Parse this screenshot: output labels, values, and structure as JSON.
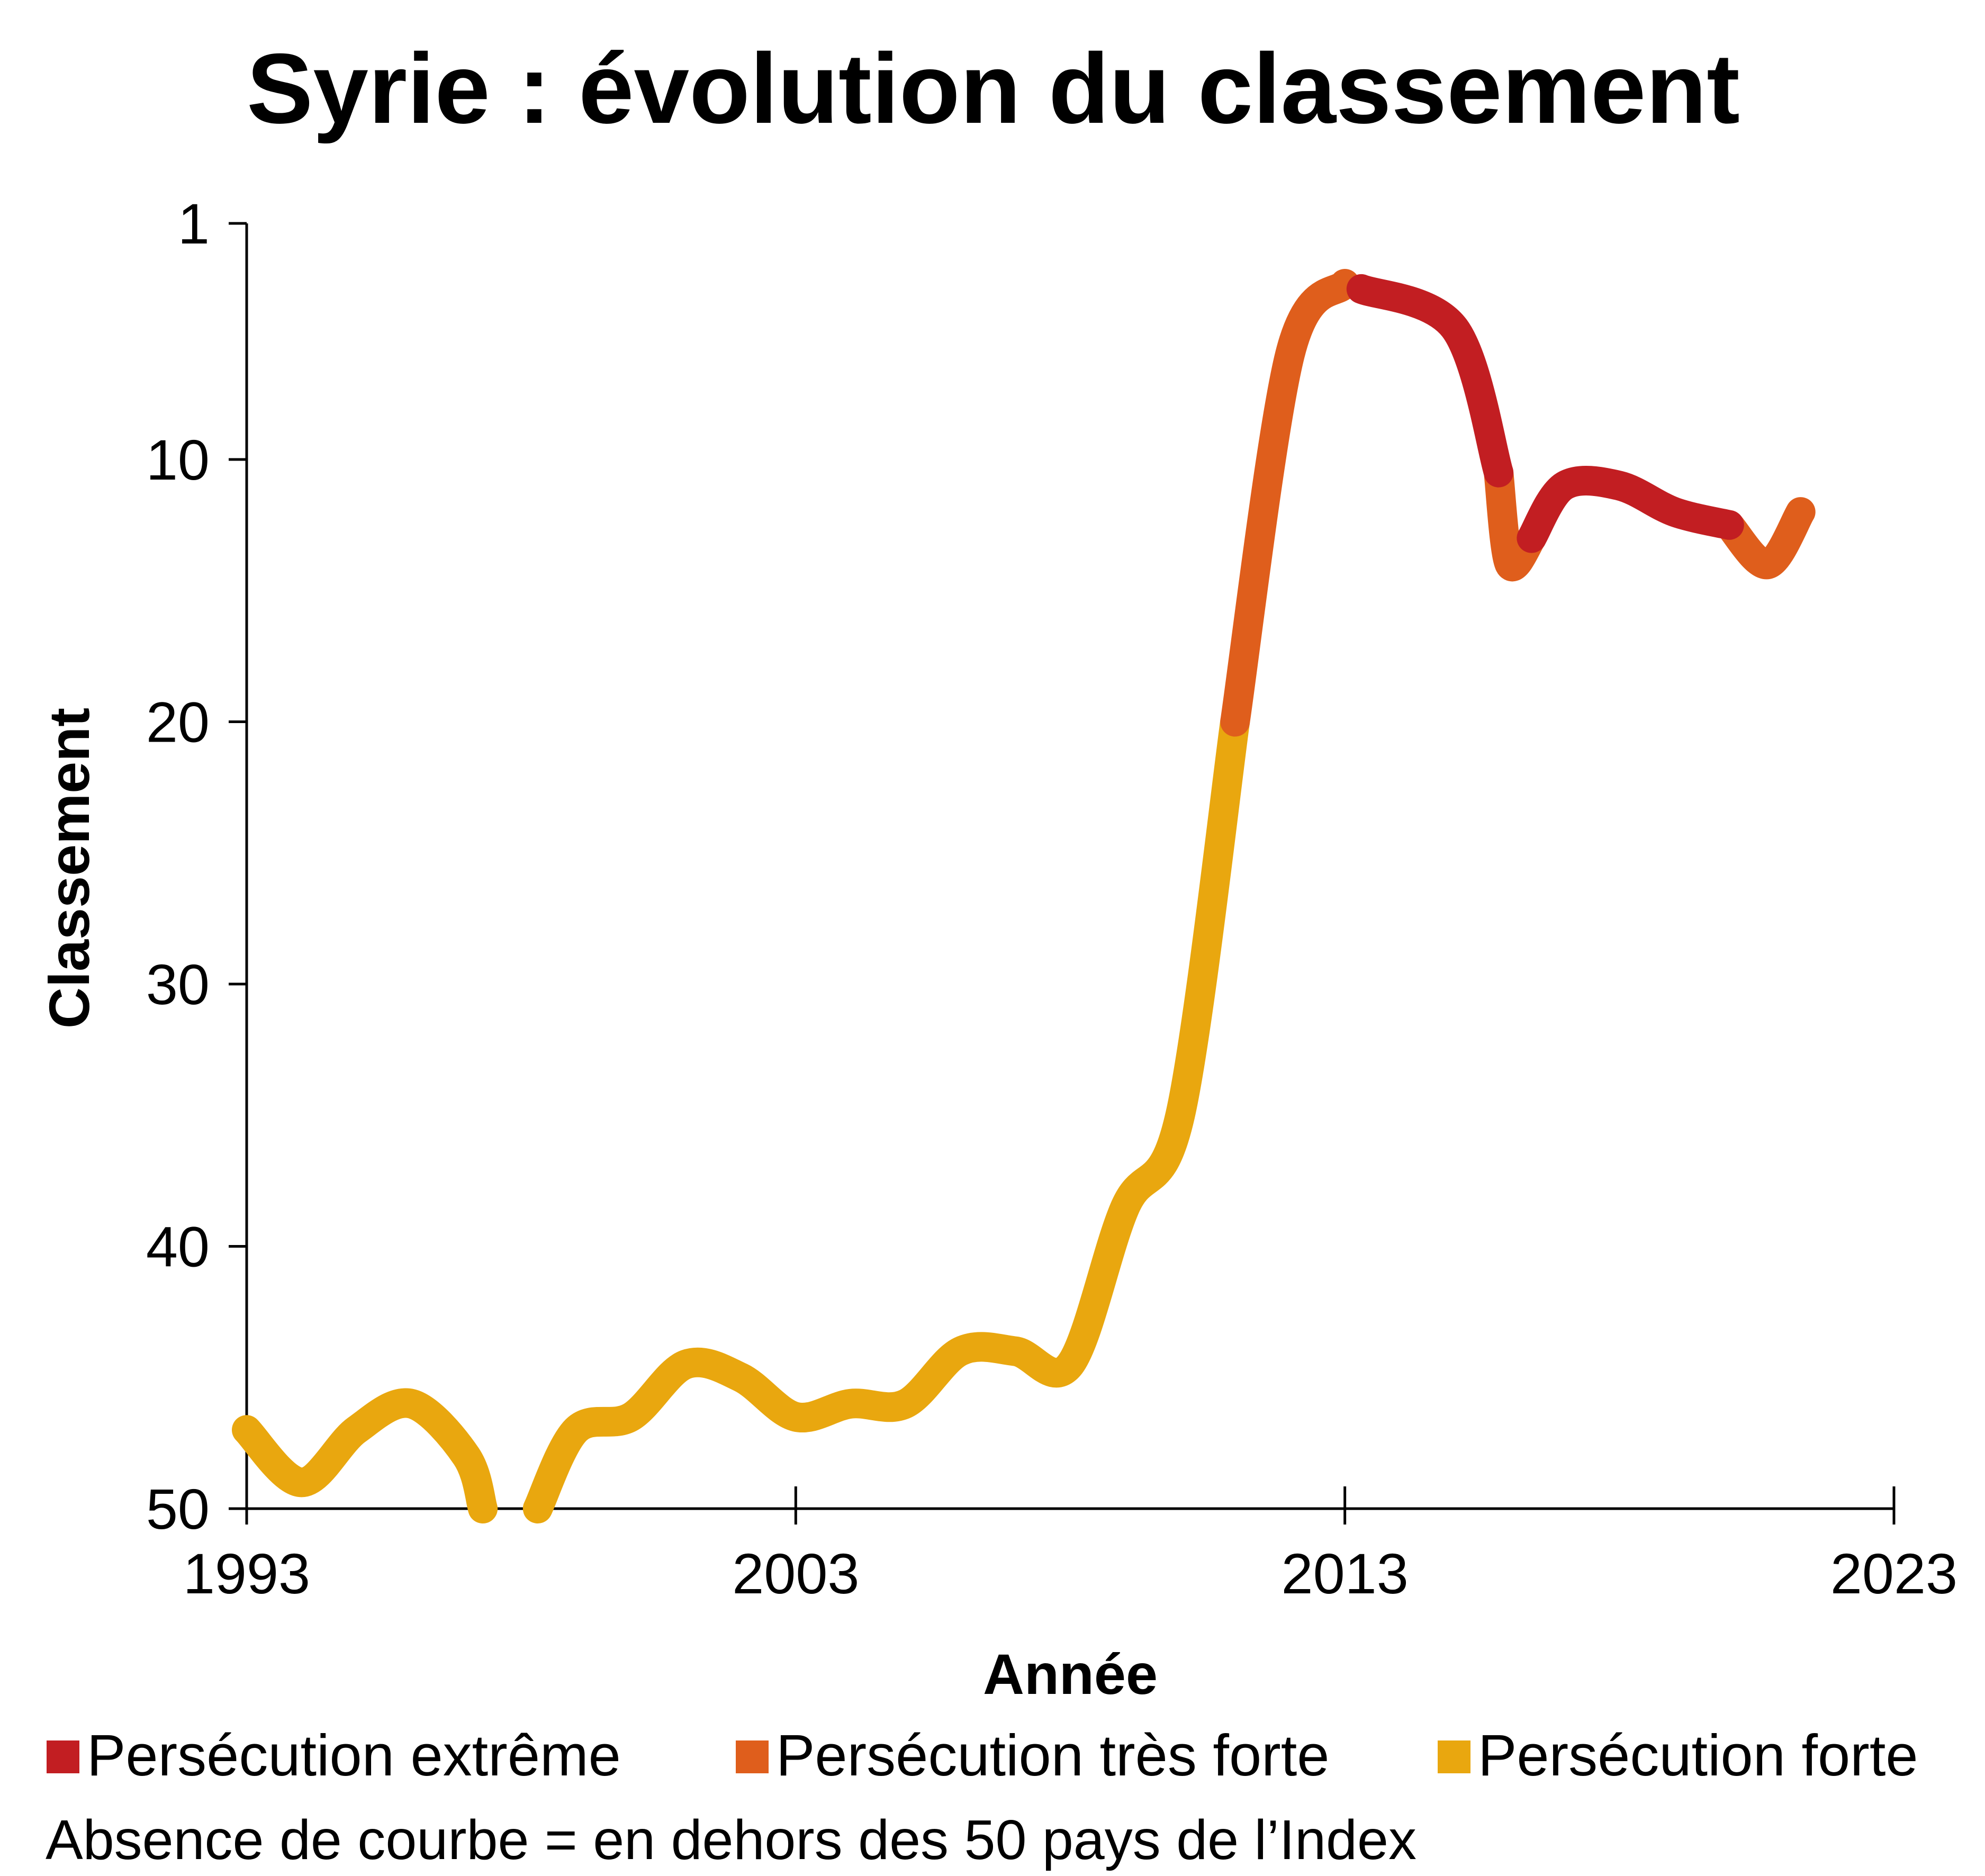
{
  "chart_data": {
    "type": "line",
    "title": "Syrie : évolution du classement",
    "xlabel": "Année",
    "ylabel": "Classement",
    "xlim": [
      1993,
      2023
    ],
    "ylim": [
      1,
      50
    ],
    "y_inverted": true,
    "x_ticks": [
      "1993",
      "2003",
      "2013",
      "2023"
    ],
    "y_ticks": [
      "1",
      "10",
      "20",
      "30",
      "40",
      "50"
    ],
    "grid": false,
    "legend_position": "bottom",
    "series": [
      {
        "name": "Persécution forte",
        "color": "#E9A70F",
        "segments": [
          [
            [
              1993,
              47
            ],
            [
              1994,
              49
            ],
            [
              1995,
              47
            ],
            [
              1996,
              46
            ],
            [
              1997,
              48
            ],
            [
              1997.3,
              50
            ]
          ],
          [
            [
              1998.3,
              50
            ],
            [
              1999,
              47
            ],
            [
              2000,
              46.5
            ],
            [
              2001,
              44.5
            ],
            [
              2002,
              45
            ],
            [
              2003,
              46.5
            ],
            [
              2004,
              46
            ],
            [
              2005,
              46
            ],
            [
              2006,
              44
            ],
            [
              2007,
              44
            ],
            [
              2008,
              44.5
            ],
            [
              2009,
              38.5
            ],
            [
              2010,
              35
            ],
            [
              2011,
              20
            ]
          ]
        ]
      },
      {
        "name": "Persécution très forte",
        "color": "#DF5E1C",
        "segments": [
          [
            [
              2011,
              20
            ],
            [
              2012,
              6
            ],
            [
              2013,
              3.3
            ]
          ],
          [
            [
              2015.8,
              10.5
            ],
            [
              2016,
              14
            ],
            [
              2016.4,
              13
            ]
          ],
          [
            [
              2020,
              12.5
            ],
            [
              2020.7,
              14
            ],
            [
              2021.3,
              12
            ]
          ]
        ]
      },
      {
        "name": "Persécution extrême",
        "color": "#C21E22",
        "segments": [
          [
            [
              2013.3,
              3.5
            ],
            [
              2015,
              5
            ],
            [
              2015.8,
              10.5
            ]
          ],
          [
            [
              2016.4,
              13
            ],
            [
              2017,
              11
            ],
            [
              2018,
              11
            ],
            [
              2019,
              12
            ],
            [
              2020,
              12.5
            ]
          ]
        ]
      }
    ]
  },
  "legend": {
    "items": [
      {
        "label": "Persécution extrême",
        "color": "#C21E22"
      },
      {
        "label": "Persécution très forte",
        "color": "#DF5E1C"
      },
      {
        "label": "Persécution forte",
        "color": "#E9A70F"
      }
    ]
  },
  "note": "Absence de courbe = en dehors des 50 pays de l’Index"
}
